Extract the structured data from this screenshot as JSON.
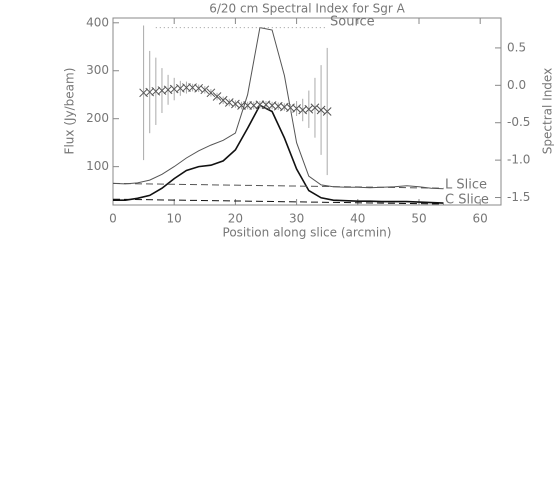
{
  "chart_data": {
    "type": "line",
    "title": "6/20 cm Spectral Index for Sgr A",
    "xlabel": "Position along slice (arcmin)",
    "ylabel": "Flux (Jy/beam)",
    "y2label": "Spectral Index",
    "xlim": [
      0,
      63.4
    ],
    "ylim": [
      20,
      410
    ],
    "y2lim": [
      -1.6,
      0.9
    ],
    "xticks": [
      0,
      10,
      20,
      30,
      40,
      50,
      60
    ],
    "yticks": [
      100,
      200,
      300,
      400
    ],
    "y2ticks": [
      0.5,
      {
        "value": 0,
        "label": "0.0"
      },
      -0.5,
      {
        "value": -1,
        "label": "-1.0"
      },
      -1.5
    ],
    "series": [
      {
        "type": "line",
        "style": "solid",
        "width": 1,
        "color": "#555555",
        "x": [
          0,
          2,
          4,
          6,
          8,
          10,
          12,
          14,
          16,
          18,
          20,
          22,
          24,
          26,
          28,
          30,
          32,
          34,
          36,
          38,
          40,
          42,
          44,
          46,
          48,
          50,
          52,
          54
        ],
        "values": [
          65,
          64,
          66,
          72,
          84,
          100,
          118,
          133,
          145,
          155,
          170,
          250,
          390,
          385,
          290,
          150,
          80,
          62,
          58,
          57,
          57,
          56,
          57,
          58,
          60,
          58,
          55,
          54
        ]
      },
      {
        "type": "line",
        "style": "solid",
        "width": 1.6,
        "color": "#111111",
        "x": [
          0,
          2,
          4,
          6,
          8,
          10,
          12,
          14,
          16,
          18,
          20,
          22,
          24,
          26,
          28,
          30,
          32,
          34,
          36,
          38,
          40,
          42,
          44,
          46,
          48,
          50,
          52,
          54
        ],
        "values": [
          30,
          30,
          34,
          40,
          55,
          75,
          92,
          100,
          103,
          112,
          135,
          180,
          228,
          215,
          160,
          95,
          50,
          35,
          30,
          29,
          28,
          28,
          27,
          27,
          27,
          26,
          25,
          24
        ]
      },
      {
        "type": "line",
        "style": "dashed",
        "width": 1,
        "color": "#555555",
        "x": [
          0,
          54
        ],
        "values": [
          65,
          55
        ]
      },
      {
        "type": "line",
        "style": "dashed",
        "width": 1,
        "color": "#111111",
        "x": [
          0,
          54
        ],
        "values": [
          32,
          22
        ]
      },
      {
        "type": "line",
        "style": "dotted",
        "width": 1,
        "color": "#999999",
        "x": [
          7,
          35
        ],
        "values": [
          390,
          390
        ]
      },
      {
        "type": "scatter",
        "axis": "y2",
        "color": "#555555",
        "error_color": "#aaaaaa",
        "x": [
          5,
          6,
          7,
          8,
          9,
          10,
          11,
          12,
          13,
          14,
          15,
          16,
          17,
          18,
          19,
          20,
          21,
          22,
          23,
          24,
          25,
          26,
          27,
          28,
          29,
          30,
          31,
          32,
          33,
          34,
          35
        ],
        "values": [
          -0.1,
          -0.09,
          -0.08,
          -0.07,
          -0.06,
          -0.05,
          -0.04,
          -0.03,
          -0.03,
          -0.04,
          -0.06,
          -0.1,
          -0.15,
          -0.2,
          -0.23,
          -0.25,
          -0.27,
          -0.27,
          -0.27,
          -0.26,
          -0.26,
          -0.27,
          -0.28,
          -0.29,
          -0.3,
          -0.31,
          -0.33,
          -0.32,
          -0.3,
          -0.33,
          -0.35
        ],
        "errors": [
          0.9,
          0.55,
          0.45,
          0.3,
          0.2,
          0.15,
          0.1,
          0.08,
          0.05,
          0.05,
          0.05,
          0.05,
          0.05,
          0.05,
          0.05,
          0.05,
          0.05,
          0.05,
          0.05,
          0.05,
          0.05,
          0.05,
          0.05,
          0.05,
          0.05,
          0.1,
          0.15,
          0.25,
          0.4,
          0.6,
          0.85
        ]
      }
    ],
    "annotations": [
      "Source",
      "L Slice",
      "C Slice"
    ]
  }
}
